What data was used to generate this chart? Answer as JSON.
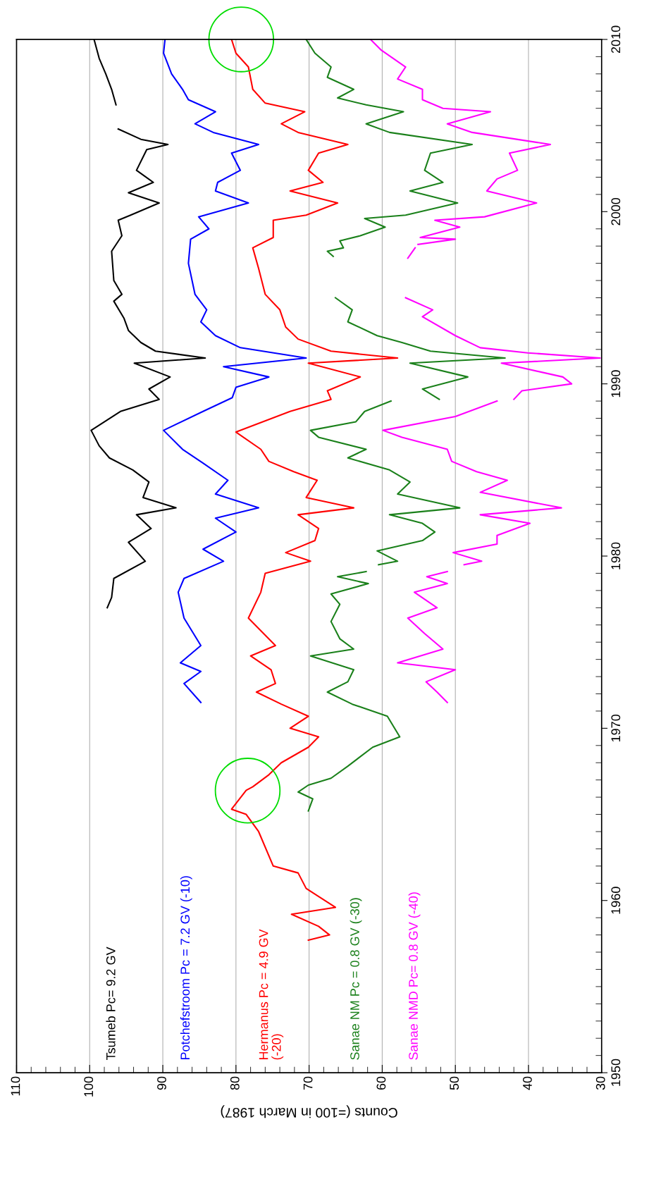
{
  "chart_data": {
    "type": "line",
    "xlabel": "Counts (=100 in March 1987)",
    "xlim": [
      110,
      30
    ],
    "ylim": [
      1950,
      2010
    ],
    "yticks": [
      1950,
      {
        "value": 1951,
        "label": null
      },
      {
        "value": 1952,
        "label": null
      },
      {
        "value": 1953,
        "label": null
      },
      {
        "value": 1954,
        "label": null
      },
      {
        "value": 1955,
        "label": null
      },
      {
        "value": 1956,
        "label": null
      },
      {
        "value": 1957,
        "label": null
      },
      {
        "value": 1958,
        "label": null
      },
      {
        "value": 1959,
        "label": null
      },
      1960,
      {
        "value": 1961,
        "label": null
      },
      {
        "value": 1962,
        "label": null
      },
      {
        "value": 1963,
        "label": null
      },
      {
        "value": 1964,
        "label": null
      },
      {
        "value": 1965,
        "label": null
      },
      {
        "value": 1966,
        "label": null
      },
      {
        "value": 1967,
        "label": null
      },
      {
        "value": 1968,
        "label": null
      },
      {
        "value": 1969,
        "label": null
      },
      1970,
      {
        "value": 1971,
        "label": null
      },
      {
        "value": 1972,
        "label": null
      },
      {
        "value": 1973,
        "label": null
      },
      {
        "value": 1974,
        "label": null
      },
      {
        "value": 1975,
        "label": null
      },
      {
        "value": 1976,
        "label": null
      },
      {
        "value": 1977,
        "label": null
      },
      {
        "value": 1978,
        "label": null
      },
      {
        "value": 1979,
        "label": null
      },
      1980,
      {
        "value": 1981,
        "label": null
      },
      {
        "value": 1982,
        "label": null
      },
      {
        "value": 1983,
        "label": null
      },
      {
        "value": 1984,
        "label": null
      },
      {
        "value": 1985,
        "label": null
      },
      {
        "value": 1986,
        "label": null
      },
      {
        "value": 1987,
        "label": null
      },
      {
        "value": 1988,
        "label": null
      },
      {
        "value": 1989,
        "label": null
      },
      1990,
      {
        "value": 1991,
        "label": null
      },
      {
        "value": 1992,
        "label": null
      },
      {
        "value": 1993,
        "label": null
      },
      {
        "value": 1994,
        "label": null
      },
      {
        "value": 1995,
        "label": null
      },
      {
        "value": 1996,
        "label": null
      },
      {
        "value": 1997,
        "label": null
      },
      {
        "value": 1998,
        "label": null
      },
      {
        "value": 1999,
        "label": null
      },
      2000,
      {
        "value": 2001,
        "label": null
      },
      {
        "value": 2002,
        "label": null
      },
      {
        "value": 2003,
        "label": null
      },
      {
        "value": 2004,
        "label": null
      },
      {
        "value": 2005,
        "label": null
      },
      {
        "value": 2006,
        "label": null
      },
      {
        "value": 2007,
        "label": null
      },
      {
        "value": 2008,
        "label": null
      },
      {
        "value": 2009,
        "label": null
      },
      2010
    ],
    "xticks": [
      30,
      {
        "value": 32,
        "label": null
      },
      {
        "value": 34,
        "label": null
      },
      {
        "value": 36,
        "label": null
      },
      {
        "value": 38,
        "label": null
      },
      40,
      {
        "value": 42,
        "label": null
      },
      {
        "value": 44,
        "label": null
      },
      {
        "value": 46,
        "label": null
      },
      {
        "value": 48,
        "label": null
      },
      50,
      {
        "value": 52,
        "label": null
      },
      {
        "value": 54,
        "label": null
      },
      {
        "value": 56,
        "label": null
      },
      {
        "value": 58,
        "label": null
      },
      60,
      {
        "value": 62,
        "label": null
      },
      {
        "value": 64,
        "label": null
      },
      {
        "value": 66,
        "label": null
      },
      {
        "value": 68,
        "label": null
      },
      70,
      {
        "value": 72,
        "label": null
      },
      {
        "value": 74,
        "label": null
      },
      {
        "value": 76,
        "label": null
      },
      {
        "value": 78,
        "label": null
      },
      80,
      {
        "value": 82,
        "label": null
      },
      {
        "value": 84,
        "label": null
      },
      {
        "value": 86,
        "label": null
      },
      {
        "value": 88,
        "label": null
      },
      90,
      {
        "value": 92,
        "label": null
      },
      {
        "value": 94,
        "label": null
      },
      {
        "value": 96,
        "label": null
      },
      {
        "value": 98,
        "label": null
      },
      100,
      {
        "value": 102,
        "label": null
      },
      {
        "value": 104,
        "label": null
      },
      {
        "value": 106,
        "label": null
      },
      {
        "value": 108,
        "label": null
      },
      110
    ],
    "grid": "x",
    "legend": false,
    "marker": "none",
    "line_style": "solid",
    "series": [
      {
        "name": "Tsumeb Pc= 9.2 GV",
        "color": "#000000",
        "values": [
          1977.0,
          1977.6,
          1978.7,
          1979.7,
          1980.8,
          1981.6,
          1982.4,
          1982.8,
          1983.4,
          1984.3,
          1985.0,
          1985.7,
          1986.4,
          1987.3,
          1988.4,
          1989.1,
          1989.7,
          1990.4,
          1991.2,
          1991.5,
          1991.9,
          1992.4,
          1993.1,
          1993.8,
          1994.8,
          1995.2,
          1996.0,
          1997.7,
          1998.6,
          1999.5,
          1999.8,
          2000.5,
          2001.1,
          2001.7,
          2002.4,
          2003.6,
          2003.9,
          2004.2,
          2004.8,
          null,
          2006.2,
          2007.1,
          2008.0,
          2008.9,
          2010.0
        ],
        "x": [
          97.6,
          97,
          96.7,
          92.4,
          94.7,
          91.6,
          93.6,
          88.2,
          92.7,
          91.9,
          94.1,
          97.3,
          98.7,
          99.8,
          95.8,
          90.5,
          91.9,
          89,
          93.9,
          84.2,
          91,
          93,
          94.7,
          95.3,
          96.7,
          95.6,
          96.7,
          97,
          95.6,
          96.1,
          94.4,
          90.5,
          94.7,
          91.3,
          93.6,
          92.2,
          89.3,
          93,
          96.1,
          null,
          96.4,
          97,
          97.8,
          98.7,
          99.4
        ]
      },
      {
        "name": "Potchefstroom Pc = 7.2 GV (-10)",
        "color": "#0000ff",
        "values": [
          1971.5,
          1972.6,
          1973.3,
          1973.8,
          1974.8,
          1976.4,
          1977.9,
          1978.7,
          1979.7,
          1980.4,
          1981.4,
          1982.2,
          1982.8,
          1983.6,
          1984.4,
          1985.4,
          1986.2,
          1987.3,
          1988.4,
          1989.2,
          1989.8,
          1990.4,
          1991.0,
          1991.5,
          1992.1,
          1992.8,
          1993.6,
          1994.3,
          1995.2,
          1997.0,
          1998.4,
          1999.0,
          1999.7,
          2000.5,
          2001.2,
          2001.7,
          2002.4,
          2003.4,
          2003.9,
          2004.6,
          2005.1,
          2005.8,
          2006.5,
          2007.1,
          2008.0,
          2009.2,
          2010.0
        ],
        "x": [
          84.8,
          87.1,
          84.8,
          87.6,
          84.8,
          87.1,
          87.9,
          87.1,
          81.7,
          84.5,
          80,
          82.8,
          76.9,
          82.8,
          81.1,
          84.5,
          87.3,
          89.9,
          84.5,
          80.5,
          80,
          75.5,
          81.7,
          70.4,
          79.4,
          82.8,
          84.8,
          84,
          85.6,
          86.5,
          86.2,
          83.7,
          85.1,
          78.3,
          82.8,
          82.5,
          79.4,
          80.6,
          76.9,
          83.1,
          85.6,
          82.8,
          86.5,
          87.3,
          88.8,
          89.9,
          89.7
        ]
      },
      {
        "name": "Hermanus Pc = 4.9 GV\n(-20)",
        "color": "#ff0000",
        "values": [
          1957.7,
          1958.0,
          1958.5,
          1959.2,
          1959.6,
          1960.7,
          1961.6,
          1962.0,
          1964.0,
          1965.0,
          1965.3,
          1966.4,
          1966.6,
          1967.3,
          1968.0,
          1968.9,
          1969.5,
          1970.0,
          1970.7,
          1971.4,
          1972.1,
          1972.6,
          1973.4,
          1974.2,
          1974.8,
          1976.4,
          1977.9,
          1979.0,
          1979.7,
          1980.2,
          1980.9,
          1981.6,
          1982.4,
          1982.8,
          1983.4,
          1984.4,
          1984.9,
          1985.5,
          1986.2,
          1987.2,
          1988.4,
          1989.1,
          1989.6,
          1990.4,
          1991.2,
          1991.5,
          1991.9,
          1992.6,
          1993.3,
          1994.3,
          1995.2,
          1996.7,
          1997.9,
          1998.5,
          1999.5,
          1999.8,
          2000.5,
          2001.2,
          2001.7,
          2002.4,
          2003.4,
          2003.9,
          2004.6,
          2005.1,
          2005.8,
          2006.3,
          2007.1,
          2008.4,
          2009.2,
          2010.0
        ],
        "x": [
          70.1,
          67.2,
          68.7,
          72.4,
          66.4,
          70.4,
          71.5,
          74.9,
          76.9,
          78.6,
          80.6,
          78.6,
          77.7,
          75.5,
          73.8,
          70.1,
          68.7,
          72.6,
          70.1,
          73.8,
          77.2,
          74.6,
          75.2,
          78,
          74.6,
          78.3,
          76.6,
          76,
          69.8,
          73.2,
          69.2,
          68.7,
          71.5,
          63.9,
          70.4,
          68.9,
          72.1,
          75.5,
          76.6,
          80,
          72.6,
          67,
          67.5,
          63,
          70.1,
          57.9,
          67,
          71.5,
          73.2,
          74,
          76,
          76.9,
          77.7,
          74.9,
          74.9,
          70.4,
          66.1,
          72.6,
          68.1,
          70.1,
          68.7,
          64.7,
          71.5,
          73.8,
          70.6,
          76,
          77.7,
          78.3,
          80,
          80.6
        ]
      },
      {
        "name": "Sanae NM Pc = 0.8 GV (-30)",
        "color": "#1a801a",
        "values": [
          1965.2,
          1965.9,
          1966.3,
          1966.7,
          1967.1,
          1967.8,
          1968.9,
          1969.5,
          1970.7,
          1971.4,
          1972.1,
          1972.7,
          1973.4,
          1974.2,
          1974.6,
          1975.2,
          1976.2,
          1977.2,
          1977.8,
          1978.4,
          1978.8,
          1979.1,
          null,
          1979.5,
          1979.7,
          1980.3,
          1980.9,
          1981.4,
          1981.9,
          1982.4,
          1982.8,
          1983.6,
          1984.3,
          1985.0,
          1985.7,
          1986.2,
          1986.9,
          1987.3,
          1987.8,
          1988.4,
          1989.0,
          null,
          1989.1,
          1989.7,
          1990.4,
          1991.2,
          1991.5,
          1991.9,
          1992.4,
          1992.8,
          1993.6,
          1994.3,
          1995.0,
          null,
          1997.4,
          1997.7,
          1997.9,
          1998.3,
          1998.6,
          1999.1,
          1999.6,
          1999.8,
          2000.5,
          2001.2,
          2001.7,
          2002.4,
          2003.4,
          2003.9,
          2004.6,
          2005.1,
          2005.8,
          2006.2,
          2006.6,
          2007.1,
          2007.8,
          2008.4,
          2009.2,
          2010.0
        ],
        "x": [
          70.1,
          69.5,
          71.5,
          70.1,
          67,
          64.7,
          61.3,
          57.6,
          59.3,
          64.1,
          67.5,
          64.7,
          63.9,
          69.8,
          63.9,
          65.8,
          67,
          65.8,
          67,
          61.9,
          66.1,
          62.2,
          null,
          60.5,
          57.9,
          60.7,
          54.5,
          52.8,
          54.5,
          59,
          49.4,
          57.9,
          56.2,
          59,
          64.7,
          62.2,
          68.7,
          69.8,
          63.6,
          62.4,
          58.8,
          null,
          52.2,
          54.5,
          48.3,
          56.2,
          43.2,
          53.4,
          57.3,
          60.7,
          64.7,
          64.1,
          66.4,
          null,
          66.7,
          67.5,
          65.3,
          65.8,
          63,
          59.6,
          62.4,
          56.8,
          49.7,
          56.2,
          51.7,
          54.2,
          53.4,
          47.7,
          59,
          62.2,
          57.1,
          62.2,
          66.1,
          63.9,
          67.5,
          67,
          69.2,
          70.4
        ]
      },
      {
        "name": "Sanae NMD Pc= 0.8 GV (-40)",
        "color": "#ff00ff",
        "values": [
          1971.5,
          1972.1,
          1972.7,
          1973.4,
          1973.8,
          1974.6,
          1975.5,
          1976.4,
          1977.0,
          1977.9,
          1978.4,
          1978.8,
          1979.1,
          null,
          1979.5,
          1979.7,
          1980.2,
          1980.7,
          1981.2,
          1981.9,
          1982.4,
          1982.8,
          1983.7,
          1984.4,
          1984.9,
          1985.5,
          1986.2,
          1986.9,
          1987.3,
          1988.1,
          1989.0,
          null,
          1989.1,
          1989.6,
          1990.0,
          1990.4,
          1991.2,
          1991.5,
          1991.8,
          1992.1,
          1992.8,
          1993.9,
          1994.3,
          1995.0,
          null,
          1997.3,
          1997.9,
          null,
          1998.1,
          1998.4,
          1998.5,
          1999.1,
          1999.5,
          1999.7,
          2000.5,
          2001.2,
          2001.9,
          2002.4,
          2003.4,
          2003.9,
          2004.6,
          2005.1,
          2005.8,
          2006.0,
          2006.5,
          2007.1,
          2007.7,
          2008.4,
          2009.4,
          2010.0
        ],
        "x": [
          51.1,
          52.5,
          54,
          50,
          57.9,
          51.7,
          54.2,
          56.5,
          52.5,
          55.6,
          51.1,
          53.9,
          51.1,
          null,
          48.8,
          46.4,
          50.3,
          44.3,
          44.3,
          39.8,
          46.6,
          35.5,
          46.6,
          42.9,
          47.1,
          50.5,
          51.1,
          57.3,
          59.9,
          50,
          44.3,
          null,
          42,
          40.9,
          34.1,
          35.3,
          43.7,
          30.2,
          40.1,
          46.6,
          50,
          54.5,
          53.1,
          56.8,
          null,
          56.5,
          55.5,
          null,
          55.1,
          50,
          54.8,
          49.4,
          52.8,
          46,
          38.9,
          45.7,
          44.3,
          41.5,
          42.6,
          37,
          47.7,
          51.1,
          45.2,
          51.7,
          54.5,
          54.5,
          57.9,
          56.8,
          60.2,
          61.6
        ]
      }
    ]
  }
}
